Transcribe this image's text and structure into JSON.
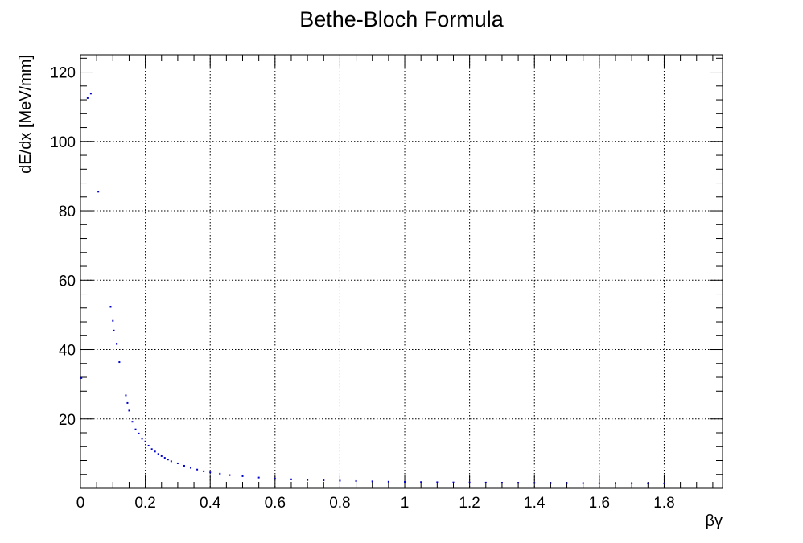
{
  "chart_data": {
    "type": "scatter",
    "title": "Bethe-Bloch Formula",
    "xlabel": "βγ",
    "ylabel": "dE/dx [MeV/mm]",
    "xlim": [
      0,
      1.98
    ],
    "ylim": [
      0,
      125
    ],
    "x_ticks": [
      0,
      0.2,
      0.4,
      0.6,
      0.8,
      1,
      1.2,
      1.4,
      1.6,
      1.8
    ],
    "x_tick_labels": [
      "0",
      "0.2",
      "0.4",
      "0.6",
      "0.8",
      "1",
      "1.2",
      "1.4",
      "1.6",
      "1.8"
    ],
    "y_ticks": [
      20,
      40,
      60,
      80,
      100,
      120
    ],
    "y_tick_labels": [
      "20",
      "40",
      "60",
      "80",
      "100",
      "120"
    ],
    "grid": true,
    "marker_color": "#0000cc",
    "series": [
      {
        "x": [
          0.003,
          0.022,
          0.032,
          0.055,
          0.093,
          0.1,
          0.103,
          0.112,
          0.12,
          0.14,
          0.145,
          0.15,
          0.16,
          0.17,
          0.18,
          0.19,
          0.2,
          0.21,
          0.22,
          0.23,
          0.24,
          0.25,
          0.26,
          0.27,
          0.28,
          0.3,
          0.32,
          0.34,
          0.36,
          0.38,
          0.4,
          0.43,
          0.46,
          0.5,
          0.55,
          0.6,
          0.65,
          0.7,
          0.75,
          0.8,
          0.85,
          0.9,
          0.95,
          1.0,
          1.05,
          1.1,
          1.15,
          1.2,
          1.25,
          1.3,
          1.35,
          1.4,
          1.45,
          1.5,
          1.55,
          1.6,
          1.65,
          1.7,
          1.75,
          1.8
        ],
        "y": [
          31.8,
          112.5,
          113.8,
          85.5,
          52.3,
          48.3,
          45.5,
          41.6,
          36.4,
          26.8,
          24.6,
          22.4,
          19.2,
          17.0,
          15.8,
          14.3,
          13.5,
          12.3,
          11.3,
          10.6,
          9.9,
          9.3,
          8.8,
          8.3,
          7.8,
          7.2,
          6.5,
          5.9,
          5.4,
          4.9,
          4.6,
          4.2,
          3.8,
          3.5,
          3.1,
          2.8,
          2.6,
          2.4,
          2.3,
          2.2,
          2.1,
          2.0,
          1.9,
          1.85,
          1.8,
          1.75,
          1.7,
          1.68,
          1.65,
          1.6,
          1.58,
          1.55,
          1.52,
          1.5,
          1.48,
          1.46,
          1.45,
          1.44,
          1.43,
          1.42
        ]
      }
    ]
  }
}
